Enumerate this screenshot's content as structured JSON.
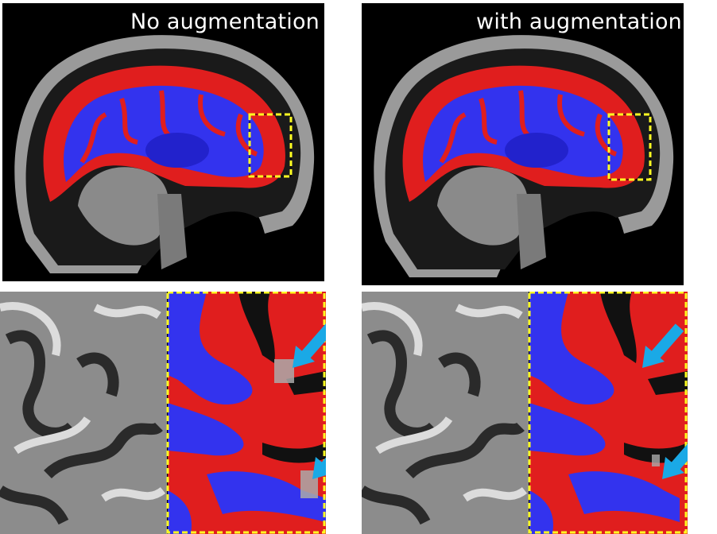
{
  "panels": {
    "top_left": {
      "label": "No augmentation"
    },
    "top_right": {
      "label": "with augmentation"
    }
  },
  "colors": {
    "segmentation_class_a": "#e01e1e",
    "segmentation_class_b": "#3333ee",
    "zoom_box": "#ffff22",
    "arrow": "#1aa9e6",
    "background": "#000000"
  },
  "icons": [
    "dashed-zoom-box",
    "callout-arrow-icon"
  ]
}
